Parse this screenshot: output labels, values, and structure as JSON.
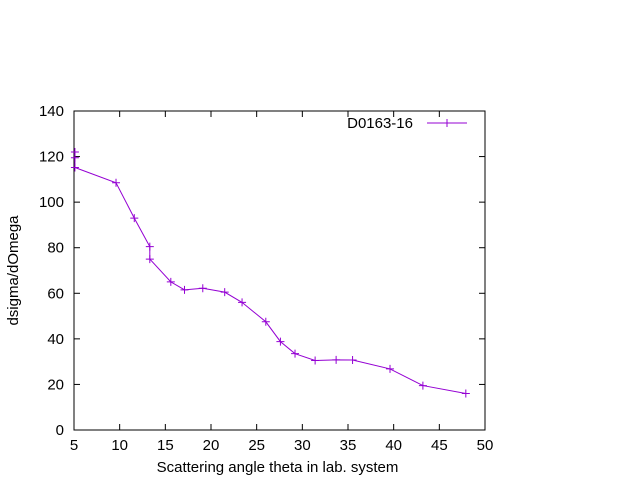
{
  "chart_data": {
    "type": "line",
    "xlabel": "Scattering angle theta in lab. system",
    "ylabel": "dsigma/dOmega",
    "xlim": [
      5,
      50
    ],
    "ylim": [
      0,
      140
    ],
    "xticks": [
      5,
      10,
      15,
      20,
      25,
      30,
      35,
      40,
      45,
      50
    ],
    "yticks": [
      0,
      20,
      40,
      60,
      80,
      100,
      120,
      140
    ],
    "grid": false,
    "legend_position": "top-right",
    "series": [
      {
        "name": "D0163-16",
        "color": "#9400d3",
        "marker": "plus",
        "points": [
          [
            5.1,
            122.0
          ],
          [
            5.1,
            119.5
          ],
          [
            5.1,
            115.2
          ],
          [
            9.6,
            108.5
          ],
          [
            11.6,
            93.0
          ],
          [
            13.3,
            80.5
          ],
          [
            13.3,
            75.0
          ],
          [
            15.6,
            65.0
          ],
          [
            17.1,
            61.5
          ],
          [
            19.1,
            62.2
          ],
          [
            21.5,
            60.5
          ],
          [
            23.4,
            56.0
          ],
          [
            26.0,
            47.5
          ],
          [
            27.6,
            38.8
          ],
          [
            29.2,
            33.5
          ],
          [
            31.4,
            30.5
          ],
          [
            33.7,
            30.8
          ],
          [
            35.5,
            30.7
          ],
          [
            39.6,
            26.8
          ],
          [
            43.2,
            19.5
          ],
          [
            47.9,
            16.0
          ]
        ]
      }
    ]
  }
}
